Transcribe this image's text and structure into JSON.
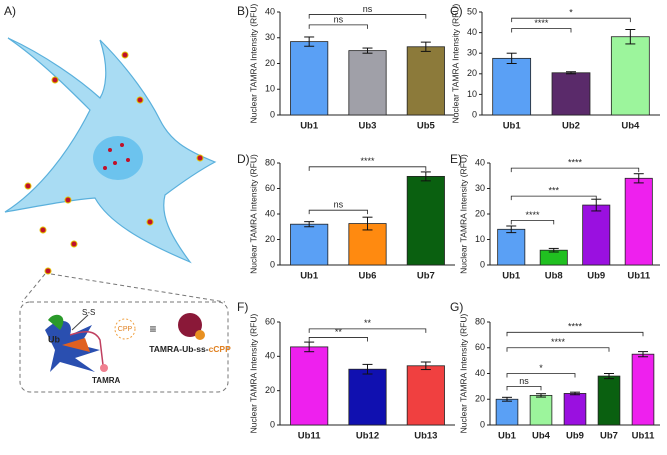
{
  "illustration": {
    "panel": "A)",
    "ub": "Ub",
    "disulfide": "S-S",
    "cpp": "CPP",
    "tamra": "TAMRA",
    "conjugate": "TAMRA-Ub-ss-",
    "conjugate_suffix": "cCPP"
  },
  "chart_data": [
    {
      "type": "bar",
      "panel": "B)",
      "ylabel": "Nuclear TAMRA Intensity (RFU)",
      "categories": [
        "Ub1",
        "Ub3",
        "Ub5"
      ],
      "values": [
        28.5,
        25,
        26.5
      ],
      "errors": [
        1.8,
        1,
        1.8
      ],
      "colors": [
        "#5aa0f5",
        "#a0a0a8",
        "#8c7a3a"
      ],
      "ylim": [
        0,
        40
      ],
      "yticks": [
        0,
        10,
        20,
        30,
        40
      ],
      "brackets": [
        {
          "from": 0,
          "to": 1,
          "y": 35,
          "label": "ns"
        },
        {
          "from": 0,
          "to": 2,
          "y": 39,
          "label": "ns"
        }
      ]
    },
    {
      "type": "bar",
      "panel": "C)",
      "ylabel": "Nuclear TAMRA Intensity (RFU)",
      "categories": [
        "Ub1",
        "Ub2",
        "Ub4"
      ],
      "values": [
        27.5,
        20.5,
        38
      ],
      "errors": [
        2.5,
        0.5,
        3.5
      ],
      "colors": [
        "#5aa0f5",
        "#5a2a6a",
        "#9cf59c"
      ],
      "ylim": [
        0,
        50
      ],
      "yticks": [
        0,
        10,
        20,
        30,
        40,
        50
      ],
      "brackets": [
        {
          "from": 0,
          "to": 1,
          "y": 42,
          "label": "****"
        },
        {
          "from": 0,
          "to": 2,
          "y": 47,
          "label": "*"
        }
      ]
    },
    {
      "type": "bar",
      "panel": "D)",
      "ylabel": "Nuclear TAMRA Intensity (RFU)",
      "categories": [
        "Ub1",
        "Ub6",
        "Ub7"
      ],
      "values": [
        32,
        32.5,
        69.5
      ],
      "errors": [
        2,
        5,
        3.5
      ],
      "colors": [
        "#5aa0f5",
        "#ff8a10",
        "#0a6010"
      ],
      "ylim": [
        0,
        80
      ],
      "yticks": [
        0,
        20,
        40,
        60,
        80
      ],
      "brackets": [
        {
          "from": 0,
          "to": 1,
          "y": 43,
          "label": "ns"
        },
        {
          "from": 0,
          "to": 2,
          "y": 77,
          "label": "****"
        }
      ]
    },
    {
      "type": "bar",
      "panel": "E)",
      "ylabel": "Nuclear TAMRA Intensity (RFU)",
      "categories": [
        "Ub1",
        "Ub8",
        "Ub9",
        "Ub11"
      ],
      "values": [
        14,
        5.8,
        23.5,
        34
      ],
      "errors": [
        1.3,
        0.7,
        2.3,
        1.8
      ],
      "colors": [
        "#5aa0f5",
        "#20c020",
        "#9a10e0",
        "#ee20ee"
      ],
      "ylim": [
        0,
        40
      ],
      "yticks": [
        0,
        10,
        20,
        30,
        40
      ],
      "brackets": [
        {
          "from": 0,
          "to": 1,
          "y": 17.5,
          "label": "****"
        },
        {
          "from": 0,
          "to": 2,
          "y": 27,
          "label": "***"
        },
        {
          "from": 0,
          "to": 3,
          "y": 38,
          "label": "****"
        }
      ]
    },
    {
      "type": "bar",
      "panel": "F)",
      "ylabel": "Nuclear TAMRA Intensity (RFU)",
      "categories": [
        "Ub11",
        "Ub12",
        "Ub13"
      ],
      "values": [
        45.5,
        32.5,
        34.5
      ],
      "errors": [
        2.8,
        2.8,
        2.2
      ],
      "colors": [
        "#ee20ee",
        "#1010b0",
        "#f04040"
      ],
      "ylim": [
        0,
        60
      ],
      "yticks": [
        0,
        20,
        40,
        60
      ],
      "brackets": [
        {
          "from": 0,
          "to": 1,
          "y": 51,
          "label": "**"
        },
        {
          "from": 0,
          "to": 2,
          "y": 56,
          "label": "**"
        }
      ]
    },
    {
      "type": "bar",
      "panel": "G)",
      "ylabel": "Nuclear TAMRA Intensity (RFU)",
      "categories": [
        "Ub1",
        "Ub4",
        "Ub9",
        "Ub7",
        "Ub11"
      ],
      "values": [
        20,
        23,
        24.5,
        38,
        55
      ],
      "errors": [
        1.5,
        1.3,
        1,
        2,
        2
      ],
      "colors": [
        "#5aa0f5",
        "#9cf59c",
        "#9a10e0",
        "#0a6010",
        "#ee20ee"
      ],
      "ylim": [
        0,
        80
      ],
      "yticks": [
        0,
        20,
        40,
        60,
        80
      ],
      "brackets": [
        {
          "from": 0,
          "to": 1,
          "y": 30,
          "label": "ns"
        },
        {
          "from": 0,
          "to": 2,
          "y": 40,
          "label": "*"
        },
        {
          "from": 0,
          "to": 3,
          "y": 60,
          "label": "****"
        },
        {
          "from": 0,
          "to": 4,
          "y": 72,
          "label": "****"
        }
      ]
    }
  ]
}
